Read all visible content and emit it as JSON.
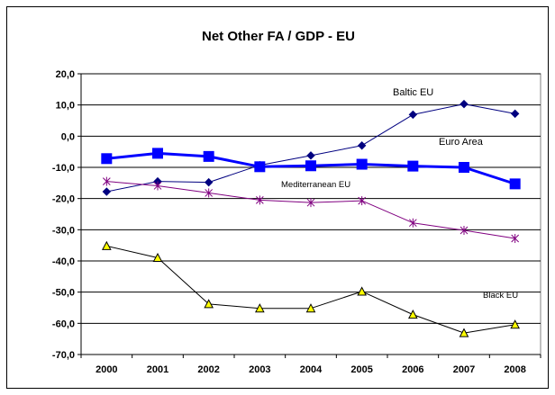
{
  "chart_data": {
    "type": "line",
    "title": "Net  Other FA / GDP - EU",
    "xlabel": "",
    "ylabel": "",
    "categories": [
      "2000",
      "2001",
      "2002",
      "2003",
      "2004",
      "2005",
      "2006",
      "2007",
      "2008"
    ],
    "ylim": [
      -70,
      20
    ],
    "yticks": [
      20,
      10,
      0,
      -10,
      -20,
      -30,
      -40,
      -50,
      -60,
      -70
    ],
    "ytick_labels": [
      "20,0",
      "10,0",
      "0,0",
      "-10,0",
      "-20,0",
      "-30,0",
      "-40,0",
      "-50,0",
      "-60,0",
      "-70,0"
    ],
    "grid": "horizontal",
    "legend": "none",
    "series": [
      {
        "name": "Baltic EU",
        "values": [
          -17.8,
          -14.5,
          -14.8,
          -9.3,
          -6.2,
          -3.0,
          6.9,
          10.3,
          7.2
        ],
        "color": "#000080",
        "marker": "diamond",
        "line_width": 1
      },
      {
        "name": "Euro Area",
        "values": [
          -7.2,
          -5.5,
          -6.5,
          -9.8,
          -9.5,
          -9.0,
          -9.6,
          -10.0,
          -15.3
        ],
        "color": "#0000ff",
        "marker": "square",
        "line_width": 3
      },
      {
        "name": "Mediterranean EU",
        "values": [
          -14.5,
          -15.9,
          -18.2,
          -20.5,
          -21.3,
          -20.7,
          -27.8,
          -30.2,
          -32.8
        ],
        "color": "#800080",
        "marker": "star",
        "line_width": 1
      },
      {
        "name": "Black EU",
        "values": [
          -35.2,
          -39.0,
          -53.8,
          -55.2,
          -55.2,
          -49.8,
          -57.2,
          -63.1,
          -60.4
        ],
        "color": "#000000",
        "marker": "triangle",
        "marker_fill": "#ffff00",
        "line_width": 1
      }
    ],
    "annotations": [
      {
        "text": "Baltic EU",
        "near": "Baltic EU series, above 2006-2007"
      },
      {
        "text": "Euro Area",
        "near": "right of Baltic EU, between 2006 and 2008"
      },
      {
        "text": "Mediterranean EU",
        "near": "below Euro Area line, 2004-2005"
      },
      {
        "text": "Black EU",
        "near": "right side, above 2008 Black EU point"
      }
    ]
  }
}
